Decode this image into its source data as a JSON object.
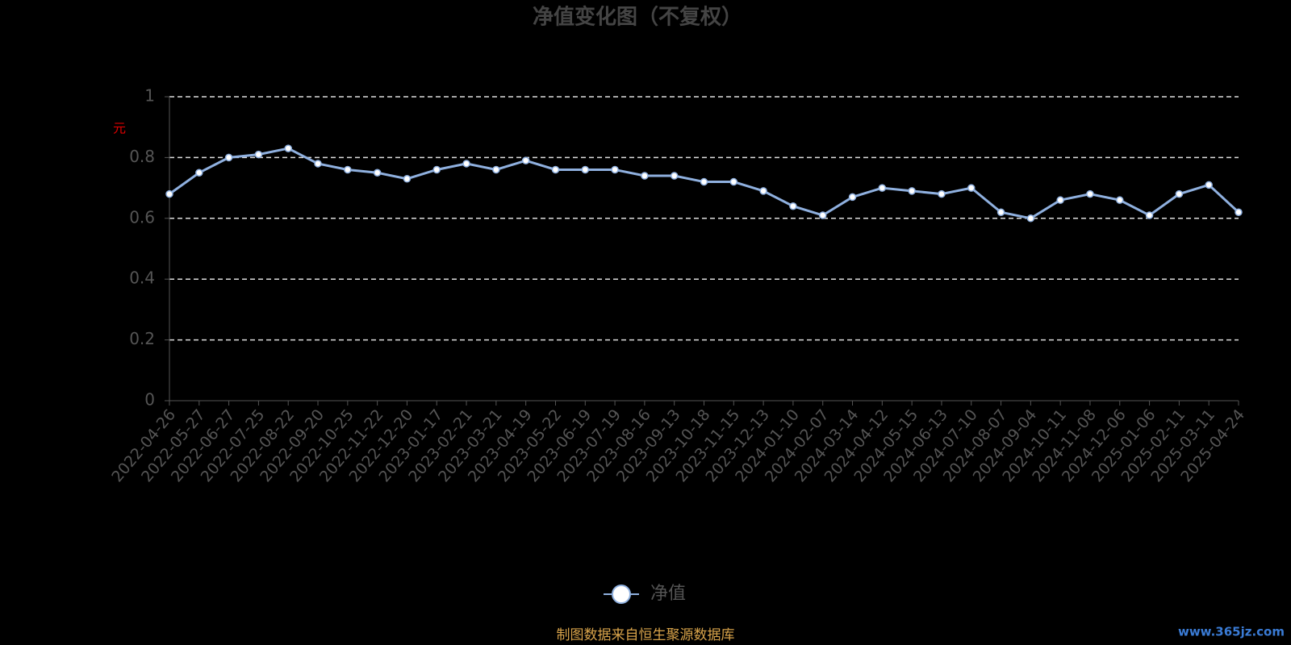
{
  "chart_data": {
    "type": "line",
    "title": "净值变化图（不复权）",
    "y_label": "元",
    "categories": [
      "2022-04-26",
      "2022-05-27",
      "2022-06-27",
      "2022-07-25",
      "2022-08-22",
      "2022-09-20",
      "2022-10-25",
      "2022-11-22",
      "2022-12-20",
      "2023-01-17",
      "2023-02-21",
      "2023-03-21",
      "2023-04-19",
      "2023-05-22",
      "2023-06-19",
      "2023-07-19",
      "2023-08-16",
      "2023-09-13",
      "2023-10-18",
      "2023-11-15",
      "2023-12-13",
      "2024-01-10",
      "2024-02-07",
      "2024-03-14",
      "2024-04-12",
      "2024-05-15",
      "2024-06-13",
      "2024-07-10",
      "2024-08-07",
      "2024-09-04",
      "2024-10-11",
      "2024-11-08",
      "2024-12-06",
      "2025-01-06",
      "2025-02-11",
      "2025-03-11",
      "2025-04-24"
    ],
    "series": [
      {
        "name": "净值",
        "color": "#8fb0df",
        "values": [
          0.68,
          0.75,
          0.8,
          0.81,
          0.83,
          0.78,
          0.76,
          0.75,
          0.73,
          0.76,
          0.78,
          0.76,
          0.79,
          0.76,
          0.76,
          0.76,
          0.74,
          0.74,
          0.72,
          0.72,
          0.69,
          0.64,
          0.61,
          0.67,
          0.7,
          0.69,
          0.68,
          0.7,
          0.62,
          0.6,
          0.66,
          0.68,
          0.66,
          0.61,
          0.68,
          0.71,
          0.62
        ]
      }
    ],
    "ylim": [
      0,
      1
    ],
    "yticks": [
      0,
      0.2,
      0.4,
      0.6,
      0.8,
      1
    ],
    "grid": true,
    "source": "制图数据来自恒生聚源数据库",
    "watermark": "www.365jz.com"
  }
}
